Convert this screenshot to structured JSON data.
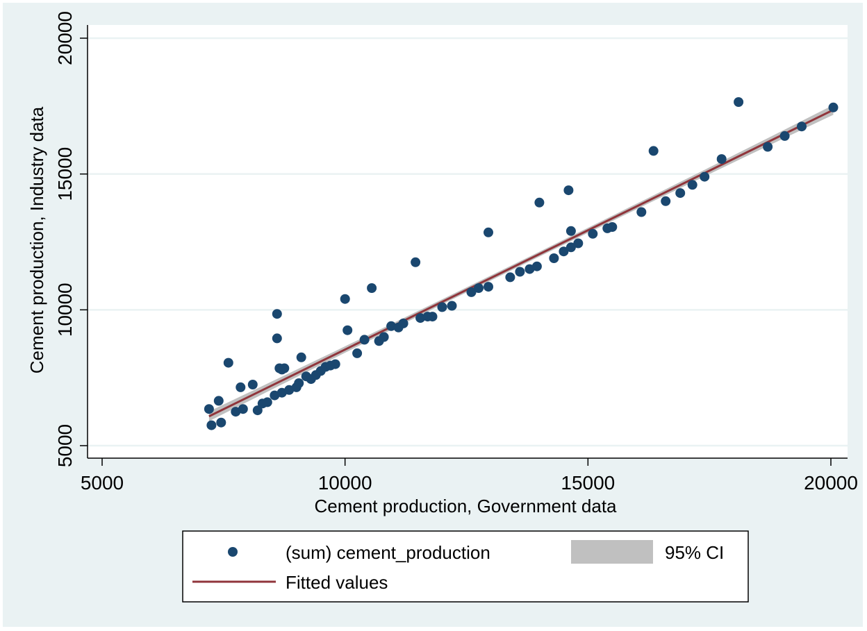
{
  "colors": {
    "background": "#eaf2f3",
    "plot_region": "#ffffff",
    "gridline": "#eaf2f3",
    "points": "#1a476f",
    "fitted_line": "#90353b",
    "ci_band": "#c0c0c0"
  },
  "chart_data": {
    "type": "scatter",
    "xlabel": "Cement production, Government data",
    "ylabel": "Cement production, Industry data",
    "xlim": [
      5000,
      20000
    ],
    "ylim": [
      5000,
      20000
    ],
    "xticks": [
      "5000",
      "10000",
      "15000",
      "20000"
    ],
    "yticks": [
      "5000",
      "10000",
      "15000",
      "20000"
    ],
    "grid": "horizontal",
    "legend": {
      "placement": "bottom",
      "entries": [
        "(sum) cement_production",
        "95% CI",
        "Fitted values"
      ]
    },
    "series": [
      {
        "name": "(sum) cement_production",
        "type": "scatter",
        "points": [
          [
            7200,
            6350
          ],
          [
            7250,
            5750
          ],
          [
            7400,
            6650
          ],
          [
            7450,
            5850
          ],
          [
            7600,
            8050
          ],
          [
            7750,
            6250
          ],
          [
            7850,
            7150
          ],
          [
            7900,
            6350
          ],
          [
            8100,
            7250
          ],
          [
            8200,
            6300
          ],
          [
            8300,
            6550
          ],
          [
            8400,
            6600
          ],
          [
            8550,
            6850
          ],
          [
            8600,
            9850
          ],
          [
            8600,
            8950
          ],
          [
            8650,
            7850
          ],
          [
            8700,
            7800
          ],
          [
            8700,
            6950
          ],
          [
            8750,
            7850
          ],
          [
            8850,
            7050
          ],
          [
            9000,
            7150
          ],
          [
            9050,
            7300
          ],
          [
            9100,
            8250
          ],
          [
            9200,
            7550
          ],
          [
            9300,
            7450
          ],
          [
            9400,
            7600
          ],
          [
            9500,
            7750
          ],
          [
            9600,
            7900
          ],
          [
            9700,
            7950
          ],
          [
            9800,
            8000
          ],
          [
            10000,
            10400
          ],
          [
            10050,
            9250
          ],
          [
            10250,
            8400
          ],
          [
            10400,
            8900
          ],
          [
            10550,
            10800
          ],
          [
            10700,
            8850
          ],
          [
            10800,
            9000
          ],
          [
            10950,
            9400
          ],
          [
            11100,
            9350
          ],
          [
            11200,
            9500
          ],
          [
            11450,
            11750
          ],
          [
            11550,
            9700
          ],
          [
            11700,
            9750
          ],
          [
            11800,
            9750
          ],
          [
            12000,
            10100
          ],
          [
            12200,
            10150
          ],
          [
            12600,
            10650
          ],
          [
            12750,
            10800
          ],
          [
            12950,
            12850
          ],
          [
            12950,
            10850
          ],
          [
            13400,
            11200
          ],
          [
            13600,
            11400
          ],
          [
            13800,
            11500
          ],
          [
            13950,
            11600
          ],
          [
            14000,
            13950
          ],
          [
            14300,
            11900
          ],
          [
            14500,
            12150
          ],
          [
            14600,
            14400
          ],
          [
            14650,
            12900
          ],
          [
            14650,
            12300
          ],
          [
            14800,
            12450
          ],
          [
            15100,
            12800
          ],
          [
            15400,
            13000
          ],
          [
            15500,
            13050
          ],
          [
            16100,
            13600
          ],
          [
            16350,
            15850
          ],
          [
            16600,
            14000
          ],
          [
            16900,
            14300
          ],
          [
            17150,
            14600
          ],
          [
            17400,
            14900
          ],
          [
            17750,
            15550
          ],
          [
            18100,
            17650
          ],
          [
            18700,
            16000
          ],
          [
            19050,
            16400
          ],
          [
            19400,
            16750
          ],
          [
            20050,
            17450
          ]
        ]
      },
      {
        "name": "Fitted values",
        "type": "line",
        "x": [
          7200,
          20050
        ],
        "y": [
          6080,
          17360
        ],
        "ci_half_width_ends": 180,
        "ci_half_width_center": 90
      }
    ]
  }
}
